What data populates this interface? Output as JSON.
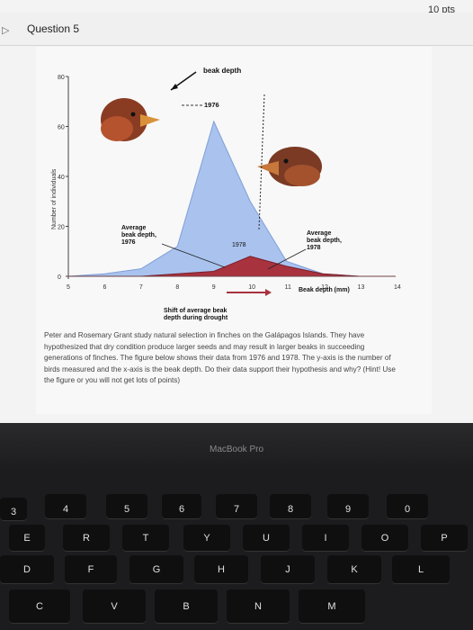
{
  "question": {
    "points": "10 pts",
    "title": "Question 5",
    "collapse_icon": "chevron-icon",
    "text": "Peter and Rosemary Grant study natural selection in finches on the Galápagos Islands. They have hypothesized that dry condition produce larger seeds and may result in larger beaks in succeeding generations of finches. The figure below shows their data from 1976 and 1978. The y-axis is the number of birds measured and the x-axis is the beak depth. Do their data support their hypothesis and why? (Hint! Use the figure or you will not get lots of points)"
  },
  "figure": {
    "label_beak_depth": "beak depth",
    "label_1976": "1976",
    "label_1978": "1978",
    "avg_1976": "Average beak depth, 1976",
    "avg_1978": "Average beak depth, 1978",
    "shift_label": "Shift of average beak depth during drought",
    "xlabel": "Beak depth (mm)",
    "ylabel": "Number of individuals",
    "chart_data": {
      "type": "area",
      "x": [
        5,
        6,
        7,
        8,
        9,
        10,
        11,
        12,
        13,
        14
      ],
      "xlabel": "Beak depth (mm)",
      "ylabel": "Number of individuals",
      "xticks": [
        "5",
        "6",
        "7",
        "8",
        "9",
        "10",
        "11",
        "12",
        "13",
        "14"
      ],
      "yticks": [
        "0",
        "20",
        "40",
        "60",
        "80"
      ],
      "ylim": [
        0,
        80
      ],
      "series": [
        {
          "name": "1976",
          "values": [
            0,
            1,
            3,
            12,
            62,
            30,
            6,
            1,
            0,
            0
          ],
          "color": "#a9c3ee"
        },
        {
          "name": "1978",
          "values": [
            0,
            0,
            0,
            1,
            2,
            8,
            4,
            1,
            0,
            0
          ],
          "color": "#a8323e"
        }
      ]
    }
  },
  "laptop": {
    "brand": "MacBook Pro",
    "keys": {
      "row1": [
        "~",
        "!",
        "@",
        "#",
        "$",
        "%",
        "^",
        "&",
        "*",
        "(",
        ")",
        "-"
      ],
      "num": [
        "3",
        "4",
        "5",
        "6",
        "7",
        "8",
        "9",
        "0"
      ],
      "r2": [
        "E",
        "R",
        "T",
        "Y",
        "U",
        "I",
        "O",
        "P"
      ],
      "r3": [
        "D",
        "F",
        "G",
        "H",
        "J",
        "K",
        "L"
      ],
      "r4": [
        "C",
        "V",
        "B",
        "N",
        "M"
      ]
    }
  }
}
